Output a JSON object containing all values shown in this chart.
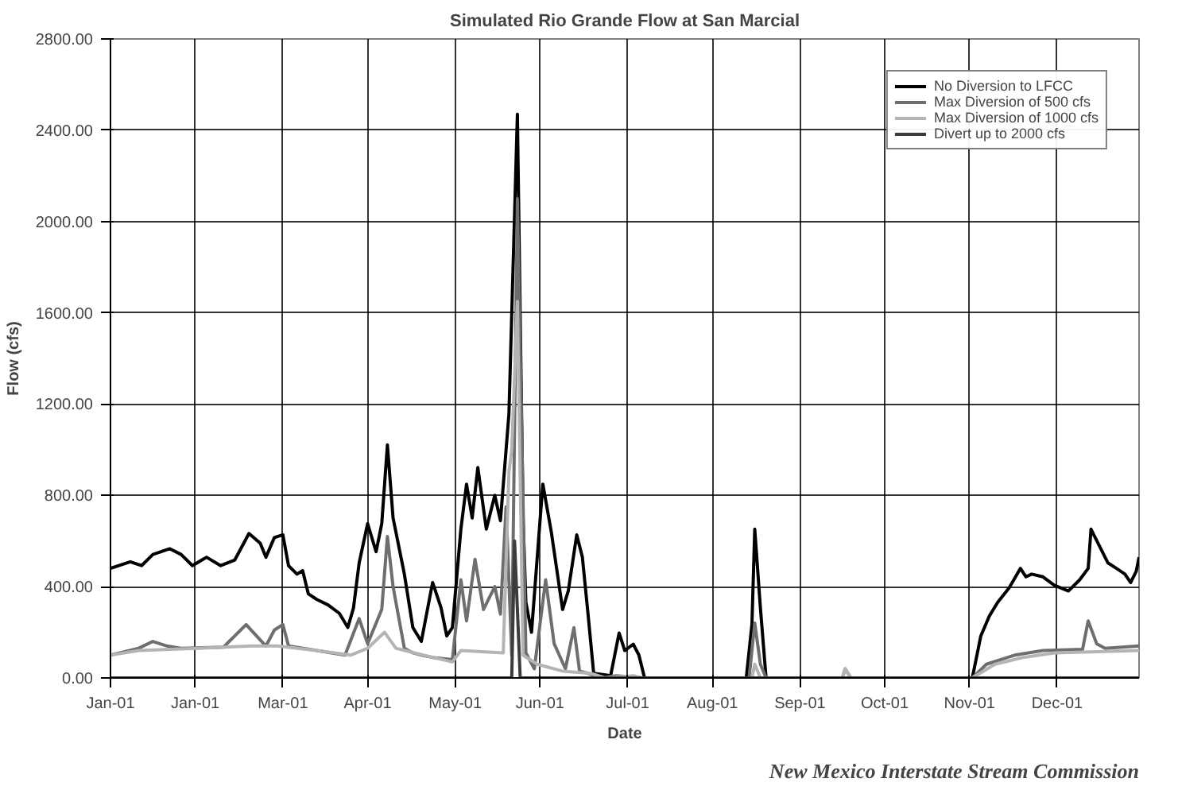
{
  "chart_data": {
    "type": "line",
    "title": "Simulated Rio Grande Flow at San Marcial",
    "xlabel": "Date",
    "ylabel": "Flow (cfs)",
    "annotations": [
      "New Mexico Interstate Stream Commission"
    ],
    "xlim": [
      "2001-01-01",
      "2001-12-31"
    ],
    "xticks": [
      {
        "value": "2001-01-01",
        "label": "Jan-01"
      },
      {
        "value": "2001-01-31",
        "label": "Jan-01"
      },
      {
        "value": "2001-03-03",
        "label": "Mar-01"
      },
      {
        "value": "2001-04-02",
        "label": "Apr-01"
      },
      {
        "value": "2001-05-03",
        "label": "May-01"
      },
      {
        "value": "2001-06-02",
        "label": "Jun-01"
      },
      {
        "value": "2001-07-03",
        "label": "Jul-01"
      },
      {
        "value": "2001-08-02",
        "label": "Aug-01"
      },
      {
        "value": "2001-09-02",
        "label": "Sep-01"
      },
      {
        "value": "2001-10-02",
        "label": "Oct-01"
      },
      {
        "value": "2001-11-01",
        "label": "Nov-01"
      },
      {
        "value": "2001-12-02",
        "label": "Dec-01"
      }
    ],
    "ylim": [
      0,
      2800
    ],
    "yticks": [
      {
        "value": 0,
        "label": "0.00"
      },
      {
        "value": 400,
        "label": "400.00"
      },
      {
        "value": 800,
        "label": "800.00"
      },
      {
        "value": 1200,
        "label": "1200.00"
      },
      {
        "value": 1600,
        "label": "1600.00"
      },
      {
        "value": 2000,
        "label": "2000.00"
      },
      {
        "value": 2400,
        "label": "2400.00"
      },
      {
        "value": 2800,
        "label": "2800.00"
      }
    ],
    "grid": true,
    "legend": "top right",
    "marker": "none",
    "line_style": "solid",
    "series": [
      {
        "name": "No Diversion to LFCC",
        "color": "#000000",
        "x": [
          "2001-01-01",
          "2001-01-08",
          "2001-01-12",
          "2001-01-16",
          "2001-01-22",
          "2001-01-26",
          "2001-01-30",
          "2001-02-04",
          "2001-02-09",
          "2001-02-14",
          "2001-02-19",
          "2001-02-23",
          "2001-02-25",
          "2001-02-28",
          "2001-03-03",
          "2001-03-05",
          "2001-03-08",
          "2001-03-10",
          "2001-03-12",
          "2001-03-15",
          "2001-03-19",
          "2001-03-23",
          "2001-03-26",
          "2001-03-28",
          "2001-03-30",
          "2001-04-02",
          "2001-04-05",
          "2001-04-07",
          "2001-04-09",
          "2001-04-11",
          "2001-04-15",
          "2001-04-18",
          "2001-04-21",
          "2001-04-25",
          "2001-04-28",
          "2001-04-30",
          "2001-05-02",
          "2001-05-05",
          "2001-05-07",
          "2001-05-09",
          "2001-05-11",
          "2001-05-14",
          "2001-05-17",
          "2001-05-19",
          "2001-05-22",
          "2001-05-25",
          "2001-05-27",
          "2001-05-28",
          "2001-05-30",
          "2001-06-03",
          "2001-06-06",
          "2001-06-10",
          "2001-06-12",
          "2001-06-15",
          "2001-06-17",
          "2001-06-19",
          "2001-06-21",
          "2001-06-27",
          "2001-06-30",
          "2001-07-02",
          "2001-07-05",
          "2001-07-07",
          "2001-07-09",
          "2001-08-14",
          "2001-08-16",
          "2001-08-17",
          "2001-08-19",
          "2001-08-21",
          "2001-11-02",
          "2001-11-05",
          "2001-11-08",
          "2001-11-11",
          "2001-11-15",
          "2001-11-19",
          "2001-11-21",
          "2001-11-23",
          "2001-11-27",
          "2001-12-01",
          "2001-12-06",
          "2001-12-10",
          "2001-12-13",
          "2001-12-14",
          "2001-12-17",
          "2001-12-20",
          "2001-12-23",
          "2001-12-26",
          "2001-12-28",
          "2001-12-30",
          "2001-12-31"
        ],
        "values": [
          480,
          509,
          492,
          541,
          566,
          541,
          492,
          529,
          492,
          517,
          633,
          590,
          529,
          615,
          627,
          492,
          455,
          470,
          369,
          344,
          320,
          283,
          221,
          307,
          504,
          676,
          553,
          676,
          1021,
          701,
          455,
          221,
          160,
          418,
          307,
          184,
          221,
          652,
          849,
          701,
          922,
          652,
          800,
          689,
          1156,
          2470,
          700,
          332,
          200,
          849,
          640,
          300,
          381,
          627,
          529,
          280,
          20,
          10,
          197,
          120,
          148,
          100,
          0,
          0,
          234,
          652,
          307,
          0,
          0,
          184,
          271,
          332,
          394,
          480,
          443,
          455,
          443,
          406,
          381,
          430,
          480,
          652,
          578,
          504,
          480,
          455,
          418,
          467,
          529
        ]
      },
      {
        "name": "Max Diversion of 500 cfs",
        "color": "#6e6e6e",
        "x": [
          "2001-01-01",
          "2001-01-11",
          "2001-01-16",
          "2001-01-21",
          "2001-01-26",
          "2001-02-10",
          "2001-02-18",
          "2001-02-22",
          "2001-02-25",
          "2001-02-28",
          "2001-03-03",
          "2001-03-05",
          "2001-03-15",
          "2001-03-25",
          "2001-03-30",
          "2001-04-02",
          "2001-04-07",
          "2001-04-09",
          "2001-04-11",
          "2001-04-15",
          "2001-04-18",
          "2001-04-21",
          "2001-04-25",
          "2001-05-02",
          "2001-05-05",
          "2001-05-07",
          "2001-05-10",
          "2001-05-13",
          "2001-05-17",
          "2001-05-19",
          "2001-05-21",
          "2001-05-23",
          "2001-05-25",
          "2001-05-28",
          "2001-05-31",
          "2001-06-04",
          "2001-06-07",
          "2001-06-11",
          "2001-06-14",
          "2001-06-16",
          "2001-06-19",
          "2001-06-24",
          "2001-06-29",
          "2001-07-09",
          "2001-08-15",
          "2001-08-17",
          "2001-08-19",
          "2001-08-21",
          "2001-09-17",
          "2001-09-18",
          "2001-09-20",
          "2001-11-02",
          "2001-11-07",
          "2001-11-17",
          "2001-11-27",
          "2001-12-11",
          "2001-12-13",
          "2001-12-16",
          "2001-12-19",
          "2001-12-31"
        ],
        "values": [
          100,
          130,
          160,
          140,
          130,
          135,
          234,
          180,
          140,
          210,
          234,
          140,
          120,
          100,
          260,
          150,
          300,
          620,
          400,
          130,
          110,
          100,
          90,
          80,
          430,
          250,
          520,
          300,
          400,
          280,
          750,
          100,
          2100,
          110,
          40,
          430,
          150,
          40,
          220,
          30,
          20,
          0,
          10,
          0,
          0,
          240,
          60,
          0,
          0,
          40,
          0,
          0,
          60,
          100,
          120,
          125,
          250,
          150,
          130,
          140
        ]
      },
      {
        "name": "Max Diversion of 1000 cfs",
        "color": "#b4b4b4",
        "x": [
          "2001-01-01",
          "2001-01-11",
          "2001-02-01",
          "2001-02-20",
          "2001-03-01",
          "2001-03-15",
          "2001-03-27",
          "2001-04-02",
          "2001-04-08",
          "2001-04-12",
          "2001-04-25",
          "2001-05-02",
          "2001-05-05",
          "2001-05-20",
          "2001-05-22",
          "2001-05-23",
          "2001-05-25",
          "2001-05-27",
          "2001-06-01",
          "2001-06-10",
          "2001-06-20",
          "2001-06-25",
          "2001-07-05",
          "2001-07-08",
          "2001-08-16",
          "2001-08-17",
          "2001-08-19",
          "2001-09-17",
          "2001-09-18",
          "2001-09-20",
          "2001-11-02",
          "2001-11-10",
          "2001-11-20",
          "2001-12-01",
          "2001-12-31"
        ],
        "values": [
          100,
          120,
          130,
          140,
          140,
          120,
          100,
          130,
          200,
          130,
          90,
          70,
          120,
          110,
          900,
          1000,
          1650,
          100,
          60,
          30,
          20,
          0,
          10,
          0,
          0,
          60,
          0,
          0,
          40,
          0,
          0,
          60,
          90,
          110,
          120
        ]
      },
      {
        "name": "Divert up to 2000 cfs",
        "color": "#3c3c3c",
        "x": [
          "2001-01-01",
          "2001-05-23",
          "2001-05-24",
          "2001-05-26",
          "2001-12-31"
        ],
        "values": [
          0,
          0,
          600,
          0,
          0
        ]
      }
    ]
  }
}
